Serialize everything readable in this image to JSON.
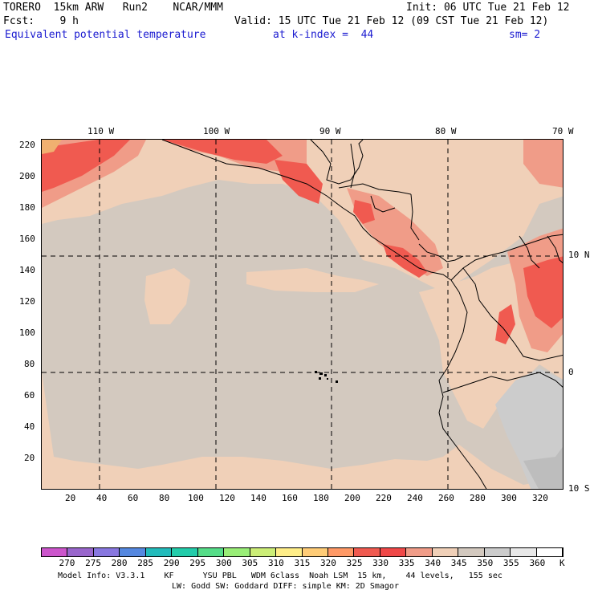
{
  "header": {
    "model": "TORERO  15km ARW   Run2    NCAR/MMM",
    "init": "Init: 06 UTC Tue 21 Feb 12",
    "fcst": "Fcst:    9 h",
    "valid": "Valid: 15 UTC Tue 21 Feb 12 (09 CST Tue 21 Feb 12)",
    "field": "Equivalent potential temperature",
    "level": "at k-index =  44",
    "smooth": "sm= 2"
  },
  "map": {
    "lon_labels": [
      "110 W",
      "100 W",
      "90 W",
      "80 W",
      "70 W"
    ],
    "lat_labels": [
      "10 N",
      "0",
      "10 S"
    ],
    "y_ticks": [
      "220",
      "200",
      "180",
      "160",
      "140",
      "120",
      "100",
      "80",
      "60",
      "40",
      "20"
    ],
    "x_ticks": [
      "20",
      "40",
      "60",
      "80",
      "100",
      "120",
      "140",
      "160",
      "180",
      "200",
      "220",
      "240",
      "260",
      "280",
      "300",
      "320"
    ]
  },
  "colorbar": {
    "unit": "K",
    "labels": [
      "270",
      "275",
      "280",
      "285",
      "290",
      "295",
      "300",
      "305",
      "310",
      "315",
      "320",
      "325",
      "330",
      "335",
      "340",
      "345",
      "350",
      "355",
      "360"
    ],
    "colors": [
      "#cc55cc",
      "#9966cc",
      "#8877e0",
      "#5588e0",
      "#22bbbb",
      "#22ccaa",
      "#55dd88",
      "#99ee77",
      "#ccee77",
      "#ffee88",
      "#ffcc77",
      "#ff9966",
      "#f05a50",
      "#f04848",
      "#f09c88",
      "#f0d0b8",
      "#d3c9bf",
      "#cccccc",
      "#e8e8e8",
      "#ffffff"
    ]
  },
  "footer": {
    "line1": "Model Info: V3.3.1    KF      YSU PBL   WDM 6class  Noah LSM  15 km,    44 levels,   155 sec",
    "line2": "LW: Godd SW: Goddard DIFF: simple KM: 2D Smagor"
  }
}
